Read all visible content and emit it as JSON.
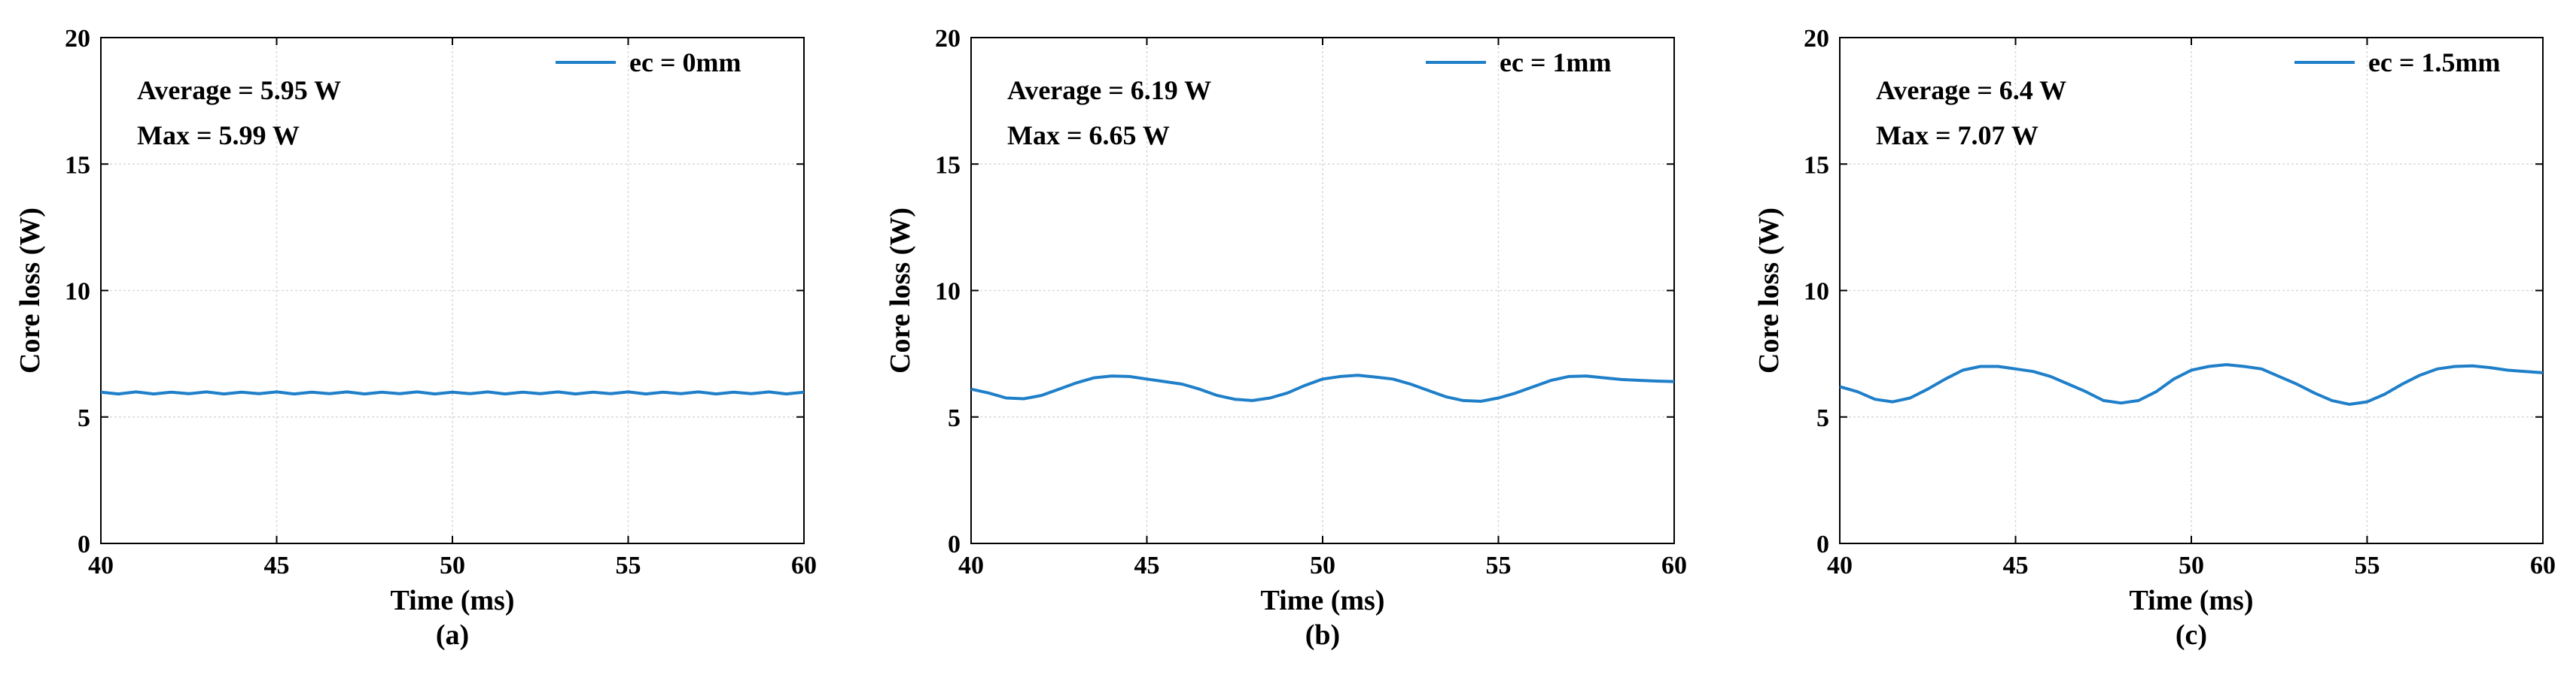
{
  "chart_data": [
    {
      "type": "line",
      "xlabel": "Time (ms)",
      "ylabel": "Core loss (W)",
      "xlim": [
        40,
        60
      ],
      "ylim": [
        0,
        20
      ],
      "xticks": [
        40,
        45,
        50,
        55,
        60
      ],
      "yticks": [
        0,
        5,
        10,
        15,
        20
      ],
      "grid": true,
      "legend": "top-right",
      "caption": "(a)",
      "annotations": [
        "Average = 5.95 W",
        "Max = 5.99 W"
      ],
      "colors": {
        "series": "#1f7fc9",
        "grid": "#d9d9d9"
      },
      "series": [
        {
          "name": "ec = 0mm",
          "x": [
            40,
            40.5,
            41,
            41.5,
            42,
            42.5,
            43,
            43.5,
            44,
            44.5,
            45,
            45.5,
            46,
            46.5,
            47,
            47.5,
            48,
            48.5,
            49,
            49.5,
            50,
            50.5,
            51,
            51.5,
            52,
            52.5,
            53,
            53.5,
            54,
            54.5,
            55,
            55.5,
            56,
            56.5,
            57,
            57.5,
            58,
            58.5,
            59,
            59.5,
            60
          ],
          "y": [
            5.98,
            5.91,
            5.99,
            5.91,
            5.98,
            5.92,
            5.99,
            5.91,
            5.98,
            5.92,
            5.99,
            5.91,
            5.98,
            5.92,
            5.99,
            5.91,
            5.98,
            5.92,
            5.99,
            5.91,
            5.98,
            5.92,
            5.99,
            5.91,
            5.98,
            5.92,
            5.99,
            5.91,
            5.98,
            5.92,
            5.99,
            5.91,
            5.98,
            5.92,
            5.99,
            5.91,
            5.98,
            5.92,
            5.99,
            5.91,
            5.98
          ]
        }
      ]
    },
    {
      "type": "line",
      "xlabel": "Time (ms)",
      "ylabel": "Core loss (W)",
      "xlim": [
        40,
        60
      ],
      "ylim": [
        0,
        20
      ],
      "xticks": [
        40,
        45,
        50,
        55,
        60
      ],
      "yticks": [
        0,
        5,
        10,
        15,
        20
      ],
      "grid": true,
      "legend": "top-right",
      "caption": "(b)",
      "annotations": [
        "Average = 6.19 W",
        "Max = 6.65 W"
      ],
      "colors": {
        "series": "#1f7fc9",
        "grid": "#d9d9d9"
      },
      "series": [
        {
          "name": "ec = 1mm",
          "x": [
            40,
            40.5,
            41,
            41.5,
            42,
            42.5,
            43,
            43.5,
            44,
            44.5,
            45,
            45.5,
            46,
            46.5,
            47,
            47.5,
            48,
            48.5,
            49,
            49.5,
            50,
            50.5,
            51,
            51.5,
            52,
            52.5,
            53,
            53.5,
            54,
            54.5,
            55,
            55.5,
            56,
            56.5,
            57,
            57.5,
            58,
            58.5,
            59,
            59.5,
            60
          ],
          "y": [
            6.1,
            5.95,
            5.75,
            5.72,
            5.85,
            6.1,
            6.35,
            6.55,
            6.62,
            6.6,
            6.5,
            6.4,
            6.3,
            6.1,
            5.85,
            5.7,
            5.65,
            5.75,
            5.95,
            6.25,
            6.5,
            6.6,
            6.65,
            6.58,
            6.5,
            6.3,
            6.05,
            5.8,
            5.65,
            5.62,
            5.75,
            5.95,
            6.2,
            6.45,
            6.6,
            6.62,
            6.55,
            6.48,
            6.45,
            6.42,
            6.4
          ]
        }
      ]
    },
    {
      "type": "line",
      "xlabel": "Time (ms)",
      "ylabel": "Core loss (W)",
      "xlim": [
        40,
        60
      ],
      "ylim": [
        0,
        20
      ],
      "xticks": [
        40,
        45,
        50,
        55,
        60
      ],
      "yticks": [
        0,
        5,
        10,
        15,
        20
      ],
      "grid": true,
      "legend": "top-right",
      "caption": "(c)",
      "annotations": [
        "Average = 6.4 W",
        "Max = 7.07 W"
      ],
      "colors": {
        "series": "#1f7fc9",
        "grid": "#d9d9d9"
      },
      "series": [
        {
          "name": "ec = 1.5mm",
          "x": [
            40,
            40.5,
            41,
            41.5,
            42,
            42.5,
            43,
            43.5,
            44,
            44.5,
            45,
            45.5,
            46,
            46.5,
            47,
            47.5,
            48,
            48.5,
            49,
            49.5,
            50,
            50.5,
            51,
            51.5,
            52,
            52.5,
            53,
            53.5,
            54,
            54.5,
            55,
            55.5,
            56,
            56.5,
            57,
            57.5,
            58,
            58.5,
            59,
            59.5,
            60
          ],
          "y": [
            6.2,
            6.0,
            5.7,
            5.6,
            5.75,
            6.1,
            6.5,
            6.85,
            7.0,
            7.0,
            6.9,
            6.8,
            6.6,
            6.3,
            6.0,
            5.65,
            5.55,
            5.65,
            6.0,
            6.5,
            6.85,
            7.0,
            7.07,
            7.0,
            6.9,
            6.6,
            6.3,
            5.95,
            5.65,
            5.5,
            5.6,
            5.9,
            6.3,
            6.65,
            6.9,
            7.0,
            7.02,
            6.95,
            6.85,
            6.8,
            6.75
          ]
        }
      ]
    }
  ]
}
